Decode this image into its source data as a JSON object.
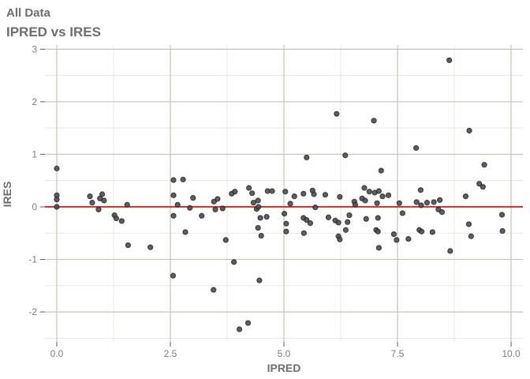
{
  "title": "All Data",
  "subtitle": "IPRED vs IRES",
  "chart_data": {
    "type": "scatter",
    "title": "All Data",
    "subtitle": "IPRED vs IRES",
    "xlabel": "IPRED",
    "ylabel": "IRES",
    "xlim": [
      -0.26,
      10.26
    ],
    "ylim": [
      -2.57,
      3.08
    ],
    "x_ticks": [
      0.0,
      2.5,
      5.0,
      7.5,
      10.0
    ],
    "x_tick_labels": [
      "0.0",
      "2.5",
      "5.0",
      "7.5",
      "10.0"
    ],
    "x_minor_ticks": [
      1.25,
      3.75,
      6.25,
      8.75
    ],
    "y_ticks": [
      -2,
      -1,
      0,
      1,
      2,
      3
    ],
    "y_tick_labels": [
      "-2",
      "-1",
      "0",
      "1",
      "2",
      "3"
    ],
    "y_minor_ticks": [
      -2.5,
      -1.5,
      -0.5,
      0.5,
      1.5,
      2.5
    ],
    "grid": true,
    "legend": false,
    "reference_line": {
      "y": 0
    },
    "points": [
      [
        0.0,
        0.73
      ],
      [
        0.0,
        0.22
      ],
      [
        0.0,
        0.14
      ],
      [
        0.0,
        0.0
      ],
      [
        0.73,
        0.2
      ],
      [
        0.78,
        0.08
      ],
      [
        0.92,
        -0.05
      ],
      [
        0.95,
        0.16
      ],
      [
        1.0,
        0.24
      ],
      [
        1.04,
        0.12
      ],
      [
        1.27,
        -0.16
      ],
      [
        1.31,
        -0.22
      ],
      [
        1.43,
        -0.27
      ],
      [
        1.55,
        0.04
      ],
      [
        1.57,
        -0.73
      ],
      [
        2.06,
        -0.77
      ],
      [
        2.56,
        -1.31
      ],
      [
        2.57,
        0.51
      ],
      [
        2.57,
        0.22
      ],
      [
        2.57,
        -0.17
      ],
      [
        2.66,
        0.04
      ],
      [
        2.78,
        0.52
      ],
      [
        2.83,
        -0.48
      ],
      [
        2.93,
        -0.02
      ],
      [
        3.0,
        0.17
      ],
      [
        3.19,
        -0.17
      ],
      [
        3.45,
        -1.58
      ],
      [
        3.46,
        0.1
      ],
      [
        3.49,
        -0.05
      ],
      [
        3.54,
        0.15
      ],
      [
        3.65,
        -0.03
      ],
      [
        3.72,
        -0.63
      ],
      [
        3.85,
        0.25
      ],
      [
        3.9,
        -1.05
      ],
      [
        3.92,
        0.29
      ],
      [
        4.02,
        -2.33
      ],
      [
        4.21,
        -2.21
      ],
      [
        4.23,
        0.36
      ],
      [
        4.3,
        0.26
      ],
      [
        4.33,
        0.08
      ],
      [
        4.4,
        -0.04
      ],
      [
        4.43,
        0.12
      ],
      [
        4.43,
        -0.4
      ],
      [
        4.44,
        0.0
      ],
      [
        4.46,
        -1.4
      ],
      [
        4.48,
        -0.21
      ],
      [
        4.5,
        -0.55
      ],
      [
        4.62,
        -0.19
      ],
      [
        4.64,
        0.3
      ],
      [
        4.74,
        0.3
      ],
      [
        5.01,
        -0.13
      ],
      [
        5.03,
        0.29
      ],
      [
        5.05,
        -0.32
      ],
      [
        5.05,
        -0.47
      ],
      [
        5.14,
        0.06
      ],
      [
        5.23,
        0.2
      ],
      [
        5.43,
        0.25
      ],
      [
        5.43,
        -0.21
      ],
      [
        5.44,
        -0.5
      ],
      [
        5.5,
        0.94
      ],
      [
        5.5,
        -0.25
      ],
      [
        5.58,
        -0.31
      ],
      [
        5.63,
        0.31
      ],
      [
        5.66,
        0.24
      ],
      [
        5.69,
        -0.01
      ],
      [
        5.91,
        0.23
      ],
      [
        5.98,
        -0.2
      ],
      [
        6.13,
        -0.26
      ],
      [
        6.16,
        1.77
      ],
      [
        6.2,
        -0.3
      ],
      [
        6.2,
        -0.56
      ],
      [
        6.23,
        0.19
      ],
      [
        6.23,
        -0.62
      ],
      [
        6.35,
        0.98
      ],
      [
        6.36,
        -0.44
      ],
      [
        6.4,
        -0.29
      ],
      [
        6.44,
        -0.16
      ],
      [
        6.55,
        0.1
      ],
      [
        6.57,
        0.04
      ],
      [
        6.72,
        0.16
      ],
      [
        6.77,
        0.36
      ],
      [
        6.79,
        0.12
      ],
      [
        6.81,
        -0.23
      ],
      [
        6.88,
        0.29
      ],
      [
        6.98,
        1.64
      ],
      [
        7.0,
        0.27
      ],
      [
        7.03,
        -0.44
      ],
      [
        7.05,
        0.07
      ],
      [
        7.07,
        -0.21
      ],
      [
        7.07,
        -0.47
      ],
      [
        7.09,
        0.3
      ],
      [
        7.09,
        -0.78
      ],
      [
        7.14,
        0.69
      ],
      [
        7.17,
        0.2
      ],
      [
        7.3,
        0.22
      ],
      [
        7.42,
        -0.52
      ],
      [
        7.48,
        -0.63
      ],
      [
        7.54,
        0.07
      ],
      [
        7.61,
        -0.12
      ],
      [
        7.74,
        -0.61
      ],
      [
        7.91,
        1.12
      ],
      [
        7.92,
        0.09
      ],
      [
        7.98,
        -0.44
      ],
      [
        8.01,
        0.32
      ],
      [
        8.02,
        0.03
      ],
      [
        8.03,
        -0.47
      ],
      [
        8.15,
        0.08
      ],
      [
        8.27,
        -0.48
      ],
      [
        8.3,
        0.09
      ],
      [
        8.4,
        -0.05
      ],
      [
        8.43,
        0.13
      ],
      [
        8.48,
        -0.1
      ],
      [
        8.64,
        2.79
      ],
      [
        8.66,
        -0.84
      ],
      [
        9.0,
        0.2
      ],
      [
        9.07,
        -0.33
      ],
      [
        9.08,
        1.45
      ],
      [
        9.12,
        -0.56
      ],
      [
        9.3,
        0.44
      ],
      [
        9.38,
        0.38
      ],
      [
        9.41,
        0.8
      ],
      [
        9.8,
        -0.15
      ],
      [
        9.81,
        -0.46
      ]
    ]
  },
  "colors": {
    "background": "#ffffff",
    "title_text": "#6e6e6e",
    "axis_title_text": "#6e6e6e",
    "tick_label_text": "#7d7d7d",
    "tick_mark": "#5a5a5a",
    "grid_major": "#c9c9be",
    "grid_minor": "#e9e9e0",
    "reference_line": "#ee0000",
    "point_fill": "#4d4d4d",
    "point_stroke": "#242424"
  }
}
